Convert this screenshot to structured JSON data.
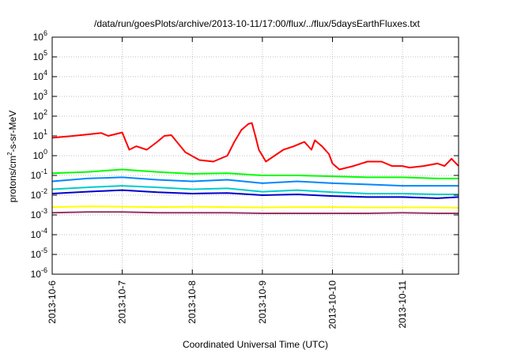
{
  "chart_data": {
    "type": "line",
    "title": "/data/run/goesPlots/archive/2013-10-11/17:00/flux/../flux/5daysEarthFluxes.txt",
    "xlabel": "Coordinated Universal Time (UTC)",
    "ylabel_parts": [
      "protons/cm",
      "2",
      "-s-sr-MeV"
    ],
    "xlim": [
      0,
      5.8
    ],
    "ylim_log10": [
      -6,
      6
    ],
    "y_scale": "log",
    "grid": true,
    "legend": "none",
    "xticks": [
      {
        "x": 0,
        "label": "2013-10-6"
      },
      {
        "x": 1,
        "label": "2013-10-7"
      },
      {
        "x": 2,
        "label": "2013-10-8"
      },
      {
        "x": 3,
        "label": "2013-10-9"
      },
      {
        "x": 4,
        "label": "2013-10-10"
      },
      {
        "x": 5,
        "label": "2013-10-11"
      }
    ],
    "yticks": [
      {
        "exp": -6,
        "base": "10",
        "sup": "-6"
      },
      {
        "exp": -5,
        "base": "10",
        "sup": "-5"
      },
      {
        "exp": -4,
        "base": "10",
        "sup": "-4"
      },
      {
        "exp": -3,
        "base": "10",
        "sup": "-3"
      },
      {
        "exp": -2,
        "base": "10",
        "sup": "-2"
      },
      {
        "exp": -1,
        "base": "10",
        "sup": "-1"
      },
      {
        "exp": 0,
        "base": "10",
        "sup": "0"
      },
      {
        "exp": 1,
        "base": "10",
        "sup": "1"
      },
      {
        "exp": 2,
        "base": "10",
        "sup": "2"
      },
      {
        "exp": 3,
        "base": "10",
        "sup": "3"
      },
      {
        "exp": 4,
        "base": "10",
        "sup": "4"
      },
      {
        "exp": 5,
        "base": "10",
        "sup": "5"
      },
      {
        "exp": 6,
        "base": "10",
        "sup": "6"
      }
    ],
    "series": [
      {
        "color": "#ff0000",
        "x": [
          0,
          0.3,
          0.6,
          0.7,
          0.8,
          1.0,
          1.1,
          1.2,
          1.35,
          1.5,
          1.6,
          1.7,
          1.9,
          2.1,
          2.3,
          2.5,
          2.6,
          2.7,
          2.8,
          2.85,
          2.9,
          2.95,
          3.05,
          3.3,
          3.45,
          3.6,
          3.7,
          3.75,
          3.85,
          3.95,
          4.0,
          4.1,
          4.3,
          4.5,
          4.7,
          4.85,
          5.0,
          5.1,
          5.3,
          5.5,
          5.6,
          5.7,
          5.8
        ],
        "y": [
          8,
          10,
          13,
          14,
          10,
          15,
          2,
          3,
          2,
          5,
          10,
          11,
          1.5,
          0.6,
          0.5,
          1.0,
          5,
          20,
          40,
          45,
          10,
          2,
          0.5,
          2,
          3,
          5,
          2,
          6,
          3,
          1.2,
          0.4,
          0.2,
          0.3,
          0.5,
          0.5,
          0.3,
          0.3,
          0.25,
          0.3,
          0.4,
          0.3,
          0.7,
          0.3
        ]
      },
      {
        "color": "#00ff00",
        "x": [
          0,
          0.5,
          1.0,
          1.5,
          2.0,
          2.5,
          3.0,
          3.5,
          4.0,
          4.5,
          5.0,
          5.5,
          5.8
        ],
        "y": [
          0.13,
          0.15,
          0.2,
          0.15,
          0.12,
          0.13,
          0.1,
          0.1,
          0.09,
          0.08,
          0.08,
          0.07,
          0.07
        ]
      },
      {
        "color": "#0088ff",
        "x": [
          0,
          0.5,
          1.0,
          1.5,
          2.0,
          2.5,
          3.0,
          3.5,
          4.0,
          4.5,
          5.0,
          5.5,
          5.8
        ],
        "y": [
          0.05,
          0.07,
          0.08,
          0.06,
          0.05,
          0.06,
          0.04,
          0.05,
          0.04,
          0.035,
          0.03,
          0.03,
          0.03
        ]
      },
      {
        "color": "#00cccc",
        "x": [
          0,
          0.5,
          1.0,
          1.5,
          2.0,
          2.5,
          3.0,
          3.5,
          4.0,
          4.5,
          5.0,
          5.5,
          5.8
        ],
        "y": [
          0.02,
          0.025,
          0.03,
          0.025,
          0.02,
          0.022,
          0.015,
          0.018,
          0.014,
          0.012,
          0.012,
          0.011,
          0.011
        ]
      },
      {
        "color": "#0000cc",
        "x": [
          0,
          0.5,
          1.0,
          1.5,
          2.0,
          2.5,
          3.0,
          3.5,
          4.0,
          4.5,
          5.0,
          5.5,
          5.8
        ],
        "y": [
          0.012,
          0.015,
          0.018,
          0.014,
          0.012,
          0.013,
          0.01,
          0.011,
          0.009,
          0.008,
          0.008,
          0.007,
          0.008
        ]
      },
      {
        "color": "#ffff00",
        "x": [
          0,
          0.5,
          1.0,
          1.5,
          2.0,
          2.5,
          3.0,
          3.5,
          4.0,
          4.5,
          5.0,
          5.5,
          5.8
        ],
        "y": [
          0.0025,
          0.0027,
          0.0026,
          0.0025,
          0.0026,
          0.0025,
          0.0024,
          0.0025,
          0.0025,
          0.0024,
          0.0024,
          0.0024,
          0.0023
        ]
      },
      {
        "color": "#993366",
        "x": [
          0,
          0.5,
          1.0,
          1.5,
          2.0,
          2.5,
          3.0,
          3.5,
          4.0,
          4.5,
          5.0,
          5.5,
          5.8
        ],
        "y": [
          0.0013,
          0.0014,
          0.0014,
          0.0013,
          0.0013,
          0.0013,
          0.0012,
          0.0012,
          0.0012,
          0.0012,
          0.0013,
          0.0012,
          0.0012
        ]
      }
    ]
  }
}
